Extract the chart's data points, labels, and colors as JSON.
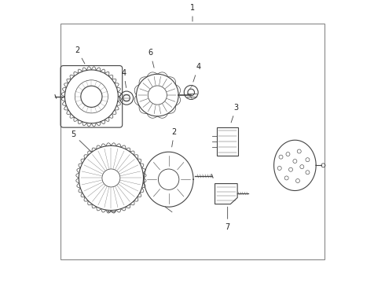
{
  "bg_color": "#ffffff",
  "line_color": "#444444",
  "label_color": "#222222",
  "border_color": "#888888",
  "fig_width": 4.9,
  "fig_height": 3.6,
  "dpi": 100
}
